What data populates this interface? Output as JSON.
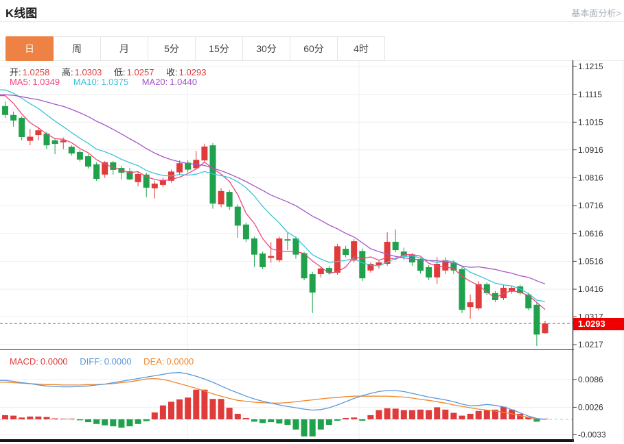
{
  "header": {
    "title": "K线图",
    "link": "基本面分析>"
  },
  "tabs": {
    "items": [
      "日",
      "周",
      "月",
      "5分",
      "15分",
      "30分",
      "60分",
      "4时"
    ],
    "selected": "日"
  },
  "ohlc_legend": {
    "open_label": "开:",
    "open": "1.0258",
    "high_label": "高:",
    "high": "1.0303",
    "low_label": "低:",
    "low": "1.0257",
    "close_label": "收:",
    "close": "1.0293"
  },
  "ma_legend": {
    "ma5_label": "MA5:",
    "ma5": "1.0349",
    "ma10_label": "MA10:",
    "ma10": "1.0375",
    "ma20_label": "MA20:",
    "ma20": "1.0440"
  },
  "macd_legend": {
    "macd_label": "MACD:",
    "macd": "0.0000",
    "diff_label": "DIFF:",
    "diff": "0.0000",
    "dea_label": "DEA:",
    "dea": "0.0000"
  },
  "price_axis": {
    "ticks": [
      "1.1215",
      "1.1115",
      "1.1015",
      "1.0916",
      "1.0816",
      "1.0716",
      "1.0616",
      "1.0516",
      "1.0416",
      "1.0317",
      "1.0217"
    ],
    "current_price": "1.0293"
  },
  "macd_axis": {
    "ticks": [
      "0.0086",
      "0.0026",
      "-0.0033"
    ]
  },
  "colors": {
    "up_red": "#E03B3B",
    "down_green": "#1FA24B",
    "ma5_pink": "#F0437E",
    "ma10_cyan": "#3BC2D8",
    "ma20_purple": "#A455C8",
    "diff_blue": "#5597DC",
    "dea_orange": "#F0862B",
    "macd_zero_cyan": "#8FD8DF",
    "badge_red": "#EE0000",
    "tab_orange": "#EE8144",
    "grid": "#EFEFEF",
    "axis_line": "#444444",
    "axis_text": "#333333",
    "pane_divider": "#333333",
    "bottom_bar": "#161616"
  },
  "chart_data": {
    "type": "candlestick",
    "title": "K线图 (日K)",
    "price_range": [
      1.0217,
      1.1215
    ],
    "macd_tick_values": [
      0.0086,
      0.0026,
      -0.0033
    ],
    "current_price": 1.0293,
    "legend_position": "top-left",
    "grid": true,
    "candles": [
      [
        1.1073,
        1.109,
        1.103,
        1.1041
      ],
      [
        1.1041,
        1.1053,
        1.0999,
        1.1021
      ],
      [
        1.1031,
        1.1036,
        1.095,
        1.0962
      ],
      [
        1.0948,
        1.0991,
        1.0932,
        1.0963
      ],
      [
        1.0969,
        1.0999,
        1.095,
        1.0986
      ],
      [
        1.0974,
        1.0981,
        1.0918,
        1.0932
      ],
      [
        1.095,
        1.0957,
        1.09,
        1.0937
      ],
      [
        1.0943,
        1.096,
        1.0918,
        1.095
      ],
      [
        1.0927,
        1.0932,
        1.0895,
        1.0903
      ],
      [
        1.0908,
        1.0915,
        1.0873,
        1.0881
      ],
      [
        1.0893,
        1.09,
        1.0849,
        1.0856
      ],
      [
        1.0864,
        1.0871,
        1.0805,
        1.0812
      ],
      [
        1.0827,
        1.0876,
        1.0815,
        1.0871
      ],
      [
        1.0871,
        1.0876,
        1.0827,
        1.0844
      ],
      [
        1.0851,
        1.0859,
        1.081,
        1.0834
      ],
      [
        1.0839,
        1.0851,
        1.0807,
        1.081
      ],
      [
        1.08,
        1.0839,
        1.0785,
        1.0829
      ],
      [
        1.0827,
        1.0834,
        1.0746,
        1.078
      ],
      [
        1.0778,
        1.0805,
        1.0741,
        1.0795
      ],
      [
        1.079,
        1.0815,
        1.0782,
        1.0808
      ],
      [
        1.0805,
        1.0845,
        1.0798,
        1.0838
      ],
      [
        1.0835,
        1.0878,
        1.0828,
        1.0868
      ],
      [
        1.087,
        1.0878,
        1.0835,
        1.0845
      ],
      [
        1.085,
        1.0912,
        1.0845,
        1.088
      ],
      [
        1.0878,
        1.0938,
        1.087,
        1.0928
      ],
      [
        1.0932,
        1.094,
        1.0705,
        1.0723
      ],
      [
        1.072,
        1.0778,
        1.071,
        1.0768
      ],
      [
        1.0765,
        1.0772,
        1.07,
        1.0712
      ],
      [
        1.0712,
        1.072,
        1.06,
        1.0644
      ],
      [
        1.0648,
        1.0655,
        1.0585,
        1.0595
      ],
      [
        1.0598,
        1.0605,
        1.0495,
        1.054
      ],
      [
        1.0544,
        1.055,
        1.0488,
        1.0495
      ],
      [
        1.0528,
        1.0585,
        1.051,
        1.0535
      ],
      [
        1.052,
        1.0605,
        1.0512,
        1.0598
      ],
      [
        1.0595,
        1.0618,
        1.0556,
        1.059
      ],
      [
        1.0598,
        1.0605,
        1.0525,
        1.054
      ],
      [
        1.0545,
        1.055,
        1.0448,
        1.0455
      ],
      [
        1.047,
        1.0478,
        1.033,
        1.0404
      ],
      [
        1.047,
        1.0498,
        1.0458,
        1.049
      ],
      [
        1.0492,
        1.05,
        1.0468,
        1.0475
      ],
      [
        1.0475,
        1.0578,
        1.0468,
        1.057
      ],
      [
        1.0561,
        1.0572,
        1.053,
        1.0539
      ],
      [
        1.0519,
        1.0595,
        1.0512,
        1.0588
      ],
      [
        1.0553,
        1.0562,
        1.0445,
        1.0455
      ],
      [
        1.0483,
        1.0512,
        1.0475,
        1.0507
      ],
      [
        1.0502,
        1.052,
        1.049,
        1.0512
      ],
      [
        1.0507,
        1.062,
        1.05,
        1.0586
      ],
      [
        1.0586,
        1.063,
        1.0548,
        1.0556
      ],
      [
        1.0551,
        1.0565,
        1.052,
        1.0536
      ],
      [
        1.0539,
        1.0546,
        1.05,
        1.0512
      ],
      [
        1.0524,
        1.053,
        1.0472,
        1.0482
      ],
      [
        1.0495,
        1.0502,
        1.0448,
        1.0458
      ],
      [
        1.0458,
        1.0532,
        1.0434,
        1.0507
      ],
      [
        1.0483,
        1.053,
        1.047,
        1.052
      ],
      [
        1.0512,
        1.052,
        1.047,
        1.0483
      ],
      [
        1.0488,
        1.0495,
        1.033,
        1.0342
      ],
      [
        1.0352,
        1.0397,
        1.031,
        1.0369
      ],
      [
        1.0347,
        1.0445,
        1.034,
        1.0434
      ],
      [
        1.0434,
        1.044,
        1.0395,
        1.0402
      ],
      [
        1.0402,
        1.041,
        1.037,
        1.0377
      ],
      [
        1.0384,
        1.043,
        1.0377,
        1.0421
      ],
      [
        1.0407,
        1.0428,
        1.04,
        1.0421
      ],
      [
        1.0426,
        1.0432,
        1.0395,
        1.0402
      ],
      [
        1.0397,
        1.0404,
        1.034,
        1.0347
      ],
      [
        1.036,
        1.0368,
        1.0212,
        1.0253
      ],
      [
        1.0258,
        1.0303,
        1.0257,
        1.0293
      ]
    ],
    "ma_periods": [
      5,
      10,
      20
    ],
    "ma_seed_closes": [
      1.106,
      1.1068,
      1.1076,
      1.1084,
      1.1092,
      1.11,
      1.1108,
      1.1116,
      1.1124,
      1.1132,
      1.114,
      1.1147,
      1.1154,
      1.1158,
      1.116,
      1.116,
      1.115,
      1.112,
      1.108
    ],
    "macd_histogram": [
      0.0009,
      0.0008,
      0.0004,
      0.0006,
      0.0006,
      0.0005,
      0.0002,
      0.0001,
      0.0001,
      -0.0002,
      -0.0006,
      -0.001,
      -0.0013,
      -0.0015,
      -0.0018,
      -0.0015,
      -0.001,
      -0.0004,
      0.0015,
      0.003,
      0.0038,
      0.0043,
      0.0047,
      0.0064,
      0.0064,
      0.0044,
      0.0044,
      0.0025,
      0.0012,
      0.0003,
      -0.0005,
      -0.0008,
      -0.0006,
      -0.0009,
      -0.0012,
      -0.0022,
      -0.0037,
      -0.0037,
      -0.0022,
      -0.0012,
      -0.0003,
      0.0003,
      0.0004,
      -0.0003,
      0.0009,
      0.002,
      0.0024,
      0.0023,
      0.002,
      0.002,
      0.0021,
      0.002,
      0.0026,
      0.0021,
      0.0014,
      0.0008,
      0.0012,
      0.0018,
      0.002,
      0.0021,
      0.0027,
      0.0021,
      0.0012,
      0.0005,
      -0.0005,
      0.0
    ],
    "diff_line": [
      0.0084,
      0.0082,
      0.0079,
      0.0077,
      0.0074,
      0.0072,
      0.0071,
      0.007,
      0.007,
      0.0071,
      0.0072,
      0.0074,
      0.0076,
      0.0079,
      0.0082,
      0.0085,
      0.0088,
      0.0091,
      0.0094,
      0.0097,
      0.01,
      0.0101,
      0.0098,
      0.0093,
      0.0087,
      0.008,
      0.0072,
      0.0064,
      0.0057,
      0.005,
      0.0044,
      0.0039,
      0.0035,
      0.0031,
      0.0028,
      0.0025,
      0.0022,
      0.002,
      0.0021,
      0.0025,
      0.0031,
      0.0038,
      0.0045,
      0.0051,
      0.0056,
      0.006,
      0.0062,
      0.0062,
      0.006,
      0.0056,
      0.0052,
      0.0048,
      0.0045,
      0.0042,
      0.0038,
      0.0033,
      0.0029,
      0.003,
      0.0032,
      0.003,
      0.0027,
      0.0021,
      0.0014,
      0.0007,
      0.0002,
      0.0
    ],
    "dea_line": [
      0.008,
      0.0079,
      0.0078,
      0.0077,
      0.0076,
      0.0075,
      0.0075,
      0.0074,
      0.0074,
      0.0074,
      0.0075,
      0.0075,
      0.0076,
      0.0077,
      0.0079,
      0.0081,
      0.0084,
      0.0087,
      0.0088,
      0.0086,
      0.0082,
      0.0077,
      0.0072,
      0.0067,
      0.0061,
      0.0055,
      0.005,
      0.0045,
      0.0041,
      0.0039,
      0.0037,
      0.0036,
      0.0035,
      0.0035,
      0.0036,
      0.0038,
      0.004,
      0.0042,
      0.0044,
      0.0046,
      0.0047,
      0.0049,
      0.005,
      0.005,
      0.005,
      0.005,
      0.005,
      0.0049,
      0.0048,
      0.0046,
      0.0043,
      0.0041,
      0.0038,
      0.0035,
      0.0031,
      0.0028,
      0.0025,
      0.0022,
      0.002,
      0.0018,
      0.0015,
      0.0012,
      0.0008,
      0.0004,
      0.0001,
      0.0
    ]
  }
}
